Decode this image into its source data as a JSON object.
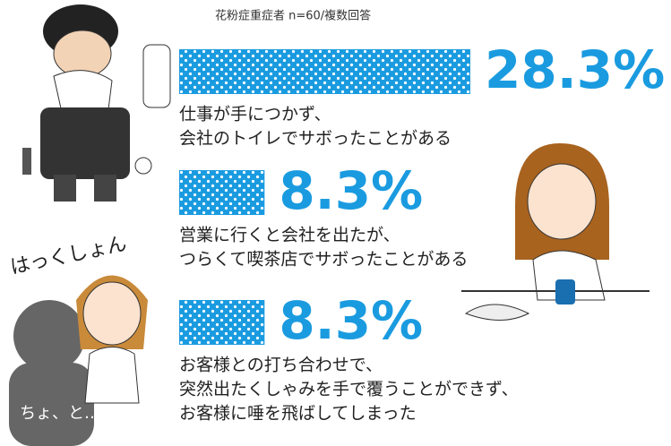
{
  "chart_data": {
    "type": "bar",
    "subtitle": "花粉症重症者 n=60/複数回答",
    "categories": [
      [
        "仕事が手につかず、",
        "会社のトイレでサボったことがある"
      ],
      [
        "営業に行くと会社を出たが、",
        "つらくて喫茶店でサボったことがある"
      ],
      [
        "お客様との打ち合わせで、",
        "突然出たくしゃみを手で覆うことができず、",
        "お客様に唾を飛ばしてしまった"
      ]
    ],
    "values": [
      28.3,
      8.3,
      8.3
    ],
    "value_labels": [
      "28.3%",
      "8.3%",
      "8.3%"
    ],
    "color": "#1a9be0",
    "annotations": [
      "はっくしょん",
      "ちょ、と…"
    ]
  }
}
